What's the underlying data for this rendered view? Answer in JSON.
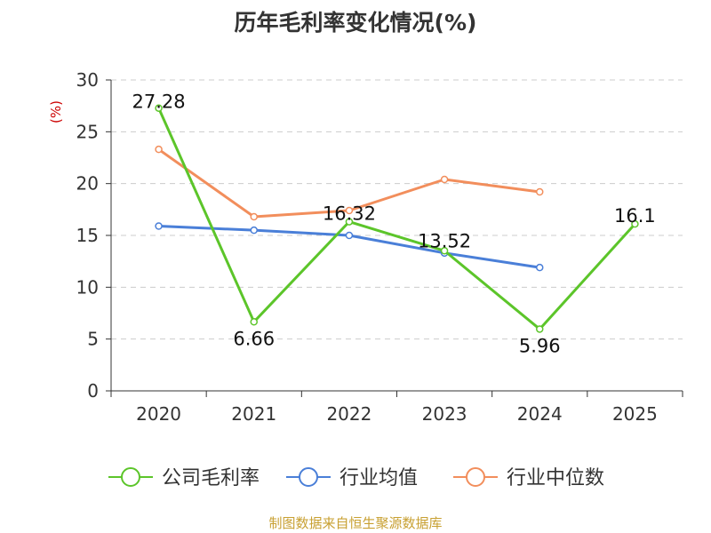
{
  "chart_data": {
    "type": "line",
    "title": "历年毛利率变化情况(%)",
    "ylabel": "(%)",
    "xlabel": "",
    "categories": [
      "2020",
      "2021",
      "2022",
      "2023",
      "2024",
      "2025"
    ],
    "ylim": [
      0,
      30
    ],
    "yticks": [
      0,
      5,
      10,
      15,
      20,
      25,
      30
    ],
    "grid": true,
    "legend_position": "bottom",
    "series": [
      {
        "name": "公司毛利率",
        "color": "#5cc52a",
        "values": [
          27.28,
          6.66,
          16.32,
          13.52,
          5.96,
          16.1
        ],
        "labels": [
          "27.28",
          "6.66",
          "16.32",
          "13.52",
          "5.96",
          "16.1"
        ]
      },
      {
        "name": "行业均值",
        "color": "#4a7fd8",
        "values": [
          15.9,
          15.5,
          15.0,
          13.3,
          11.9,
          null
        ]
      },
      {
        "name": "行业中位数",
        "color": "#f28e5c",
        "values": [
          23.3,
          16.8,
          17.4,
          20.4,
          19.2,
          null
        ]
      }
    ]
  },
  "source": {
    "text": "制图数据来自恒生聚源数据库",
    "color": "#c8a032"
  },
  "colors": {
    "axis": "#333333",
    "ylabel": "#cc0000",
    "grid": "#cccccc"
  }
}
